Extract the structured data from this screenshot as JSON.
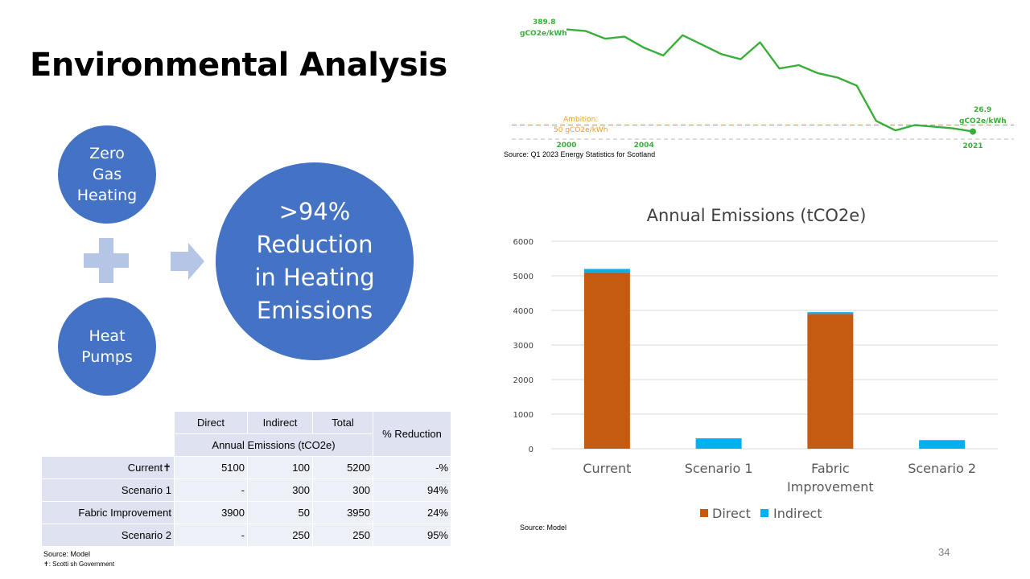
{
  "slide": {
    "title": "Environmental Analysis",
    "page_number": "34"
  },
  "diagram": {
    "circle_gas": "Zero Gas Heating",
    "circle_pumps": "Heat Pumps",
    "circle_result": ">94% Reduction in Heating Emissions"
  },
  "table": {
    "headers": [
      "Direct",
      "Indirect",
      "Total"
    ],
    "subheader": "Annual Emissions (tCO2e)",
    "reduction_header": "% Reduction",
    "rows": [
      {
        "label": "Current✝",
        "direct": "5100",
        "indirect": "100",
        "total": "5200",
        "reduction": "-%"
      },
      {
        "label": "Scenario 1",
        "direct": "-",
        "indirect": "300",
        "total": "300",
        "reduction": "94%"
      },
      {
        "label": "Fabric Improvement",
        "direct": "3900",
        "indirect": "50",
        "total": "3950",
        "reduction": "24%"
      },
      {
        "label": "Scenario 2",
        "direct": "-",
        "indirect": "250",
        "total": "250",
        "reduction": "95%"
      }
    ],
    "source": "Source: Model",
    "footnote": "✝: Scotti sh Government"
  },
  "chart_data": [
    {
      "type": "line",
      "x": [
        2000,
        2001,
        2002,
        2003,
        2004,
        2005,
        2006,
        2007,
        2008,
        2009,
        2010,
        2011,
        2012,
        2013,
        2014,
        2015,
        2016,
        2017,
        2018,
        2019,
        2020,
        2021
      ],
      "y": [
        389.8,
        384,
        357,
        364,
        325,
        297,
        369,
        336,
        302,
        284,
        344,
        251,
        263,
        234,
        219,
        190,
        65,
        31,
        50,
        44,
        38,
        26.9
      ],
      "xlim": [
        2000,
        2021
      ],
      "ylim": [
        0,
        400
      ],
      "start_value_label": "389.8",
      "start_unit_label": "gCO2e/kWh",
      "end_value_label": "26.9",
      "end_unit_label": "gCO2e/kWh",
      "ambition_value": 50,
      "ambition_label": "Ambition:",
      "ambition_value_label": "50 gCO2e/kWh",
      "tick_labels": [
        {
          "x": 2000,
          "label": "2000"
        },
        {
          "x": 2004,
          "label": "2004"
        },
        {
          "x": 2021,
          "label": "2021"
        }
      ],
      "source": "Source: Q1 2023 Energy Statistics for Scotland",
      "colors": {
        "line": "#3aae3a",
        "ambition": "#f09a2a",
        "baseline": "#c8c8c8"
      }
    },
    {
      "type": "bar",
      "stacked": true,
      "title": "Annual Emissions (tCO2e)",
      "categories": [
        "Current",
        "Scenario 1",
        "Fabric Improvement",
        "Scenario 2"
      ],
      "category_lines": [
        [
          "Current"
        ],
        [
          "Scenario 1"
        ],
        [
          "Fabric",
          "Improvement"
        ],
        [
          "Scenario 2"
        ]
      ],
      "series": [
        {
          "name": "Direct",
          "values": [
            5100,
            0,
            3900,
            0
          ],
          "color": "#C55A11"
        },
        {
          "name": "Indirect",
          "values": [
            100,
            300,
            50,
            250
          ],
          "color": "#00B0F0"
        }
      ],
      "ylim": [
        0,
        6000
      ],
      "yticks": [
        0,
        1000,
        2000,
        3000,
        4000,
        5000,
        6000
      ],
      "ytick_labels": [
        "0",
        "1000",
        "2000",
        "3000",
        "4000",
        "5000",
        "6000"
      ],
      "grid": true,
      "legend": "bottom",
      "source": "Source: Model"
    }
  ]
}
